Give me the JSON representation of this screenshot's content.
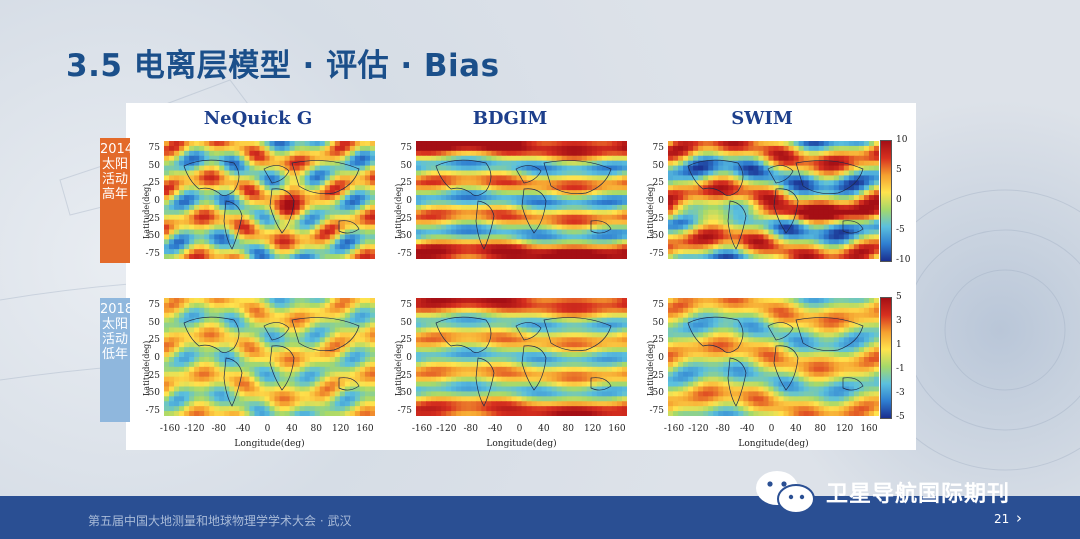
{
  "slide": {
    "title": "3.5 电离层模型 · 评估 · Bias",
    "page_number": "21",
    "footer_text": "第五届中国大地测量和地球物理学学术大会 · 武汉",
    "brand_text": "卫星导航国际期刊"
  },
  "figure": {
    "columns": [
      "NeQuick G",
      "BDGIM",
      "SWIM"
    ],
    "rows": [
      {
        "label": "2014太阳活动高年",
        "color": "#e36a2a"
      },
      {
        "label": "2018太阳活动低年",
        "color": "#8fb7dd"
      }
    ],
    "y_ticks": [
      "75",
      "50",
      "25",
      "0",
      "-25",
      "-50",
      "-75"
    ],
    "x_ticks": [
      "-160",
      "-120",
      "-80",
      "-40",
      "0",
      "40",
      "80",
      "120",
      "160"
    ],
    "y_axis_label": "Latitude(deg)",
    "x_axis_label": "Longitude(deg)",
    "colorbars": [
      {
        "ticks": [
          "10",
          "5",
          "0",
          "-5",
          "-10"
        ],
        "range": [
          -10,
          10
        ]
      },
      {
        "ticks": [
          "5",
          "3",
          "1",
          "-1",
          "-3",
          "-5"
        ],
        "range": [
          -5,
          5
        ]
      }
    ],
    "colormap": [
      "#1a2f8f",
      "#2f7fd1",
      "#5bc0de",
      "#a5d96a",
      "#ffe34d",
      "#f5a030",
      "#d7301f",
      "#a50f15"
    ]
  }
}
